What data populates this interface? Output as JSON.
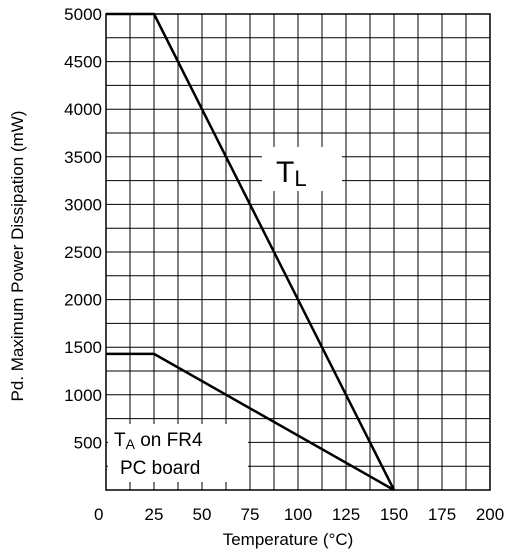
{
  "chart_data": {
    "type": "line",
    "title": "",
    "xlabel": "Temperature (°C)",
    "ylabel": "Pd. Maximum Power Dissipation (mW)",
    "xlim": [
      0,
      200
    ],
    "ylim": [
      0,
      5000
    ],
    "x_ticks": [
      "0",
      "25",
      "50",
      "75",
      "100",
      "125",
      "150",
      "175",
      "200"
    ],
    "y_ticks": [
      "500",
      "1000",
      "1500",
      "2000",
      "2500",
      "3000",
      "3500",
      "4000",
      "4500",
      "5000"
    ],
    "grid": true,
    "series": [
      {
        "name": "TL",
        "x": [
          0,
          25,
          150
        ],
        "y": [
          5000,
          5000,
          0
        ]
      },
      {
        "name": "TA on FR4 PC board",
        "x": [
          0,
          25,
          150
        ],
        "y": [
          1430,
          1430,
          0
        ]
      }
    ],
    "annotations": {
      "tl_main": "T",
      "tl_sub": "L",
      "ta_main": "T",
      "ta_sub": "A",
      "ta_line1_rest": " on FR4",
      "ta_line2": "PC board"
    },
    "colors": {
      "line": "#000000",
      "grid": "#000000",
      "background": "#ffffff"
    }
  }
}
